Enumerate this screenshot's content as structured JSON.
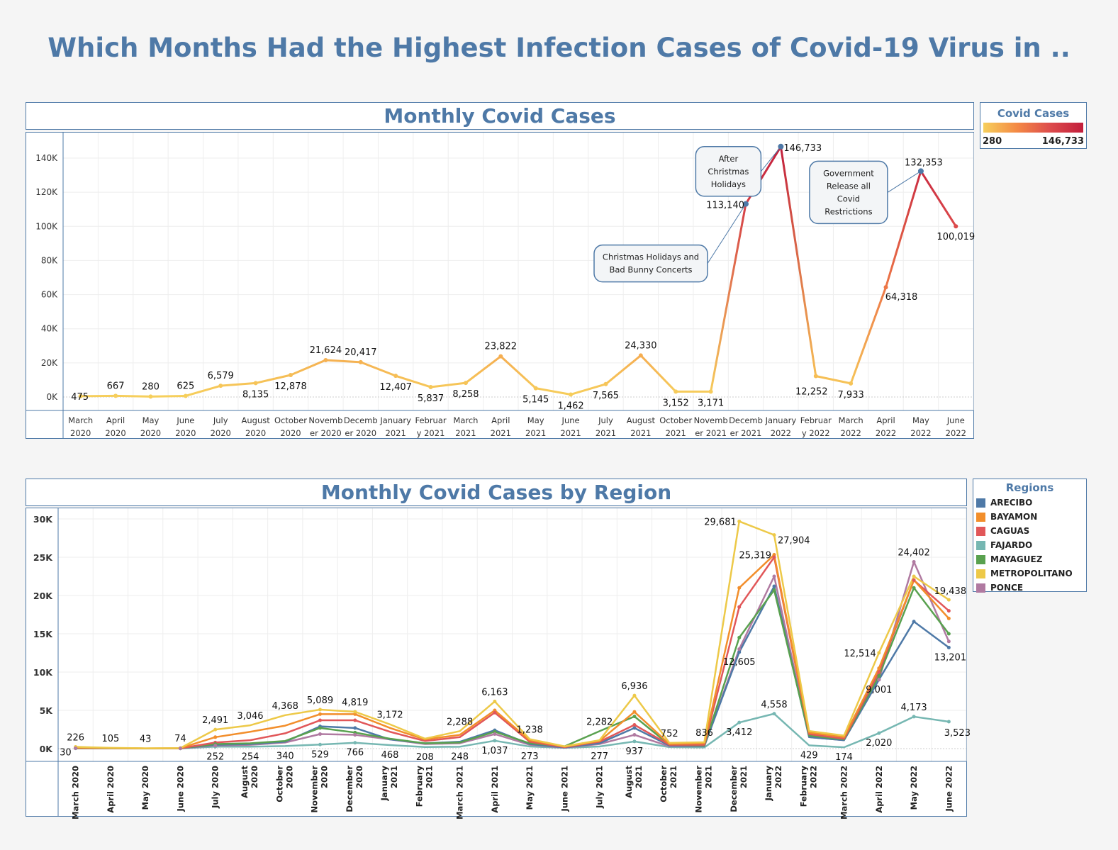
{
  "title": "Which Months Had the Highest Infection Cases of Covid-19 Virus in ..",
  "chart1": {
    "title": "Monthly Covid Cases",
    "legend": {
      "title": "Covid Cases",
      "min_label": "280",
      "max_label": "146,733",
      "colors": [
        "#f6cf5c",
        "#f48a45",
        "#dd4c4c",
        "#c21e3c"
      ]
    },
    "annotations": [
      {
        "text": [
          "After",
          "Christmas",
          "Holidays"
        ],
        "month": "January 2022"
      },
      {
        "text": [
          "Christmas Holidays and",
          "Bad Bunny Concerts"
        ],
        "month": "December 2021"
      },
      {
        "text": [
          "Government",
          "Release all",
          "Covid",
          "Restrictions"
        ],
        "month": "May 2022"
      }
    ]
  },
  "chart2": {
    "title": "Monthly Covid Cases by Region",
    "legend_title": "Regions"
  },
  "chart_data": [
    {
      "type": "line",
      "title": "Monthly Covid Cases",
      "categories": [
        "March 2020",
        "April 2020",
        "May 2020",
        "June 2020",
        "July 2020",
        "August 2020",
        "October 2020",
        "November 2020",
        "December 2020",
        "January 2021",
        "February 2021",
        "March 2021",
        "April 2021",
        "May 2021",
        "June 2021",
        "July 2021",
        "August 2021",
        "October 2021",
        "November 2021",
        "December 2021",
        "January 2022",
        "February 2022",
        "March 2022",
        "April 2022",
        "May 2022",
        "June 2022"
      ],
      "tick_labels": [
        [
          "March",
          "2020"
        ],
        [
          "April",
          "2020"
        ],
        [
          "May",
          "2020"
        ],
        [
          "June",
          "2020"
        ],
        [
          "July",
          "2020"
        ],
        [
          "August",
          "2020"
        ],
        [
          "October",
          "2020"
        ],
        [
          "Novemb",
          "er 2020"
        ],
        [
          "Decemb",
          "er 2020"
        ],
        [
          "January",
          "2021"
        ],
        [
          "Februar",
          "y 2021"
        ],
        [
          "March",
          "2021"
        ],
        [
          "April",
          "2021"
        ],
        [
          "May",
          "2021"
        ],
        [
          "June",
          "2021"
        ],
        [
          "July",
          "2021"
        ],
        [
          "August",
          "2021"
        ],
        [
          "October",
          "2021"
        ],
        [
          "Novemb",
          "er 2021"
        ],
        [
          "Decemb",
          "er 2021"
        ],
        [
          "January",
          "2022"
        ],
        [
          "Februar",
          "y 2022"
        ],
        [
          "March",
          "2022"
        ],
        [
          "April",
          "2022"
        ],
        [
          "May",
          "2022"
        ],
        [
          "June",
          "2022"
        ]
      ],
      "values": [
        475,
        667,
        280,
        625,
        6579,
        8135,
        12878,
        21624,
        20417,
        12407,
        5837,
        8258,
        23822,
        5145,
        1462,
        7565,
        24330,
        3152,
        3171,
        113140,
        146733,
        12252,
        7933,
        64318,
        132353,
        100019
      ],
      "data_labels": [
        "475",
        "667",
        "280",
        "625",
        "6,579",
        "8,135",
        "12,878",
        "21,624",
        "20,417",
        "12,407",
        "5,837",
        "8,258",
        "23,822",
        "5,145",
        "1,462",
        "7,565",
        "24,330",
        "3,152",
        "3,171",
        "113,140",
        "146,733",
        "12,252",
        "7,933",
        "64,318",
        "132,353",
        "100,019"
      ],
      "label_above": [
        false,
        true,
        true,
        true,
        true,
        false,
        false,
        true,
        true,
        false,
        false,
        false,
        true,
        false,
        false,
        false,
        true,
        false,
        false,
        false,
        false,
        false,
        false,
        false,
        true,
        false
      ],
      "ylim": [
        0,
        150000
      ],
      "yticks": [
        0,
        20000,
        40000,
        60000,
        80000,
        100000,
        120000,
        140000
      ],
      "ytick_labels": [
        "0K",
        "20K",
        "40K",
        "60K",
        "80K",
        "100K",
        "120K",
        "140K"
      ],
      "color_scale": [
        280,
        146733
      ]
    },
    {
      "type": "line",
      "title": "Monthly Covid Cases by Region",
      "categories": [
        "March 2020",
        "April 2020",
        "May 2020",
        "June 2020",
        "July 2020",
        "August 2020",
        "October 2020",
        "November 2020",
        "December 2020",
        "January 2021",
        "February 2021",
        "March 2021",
        "April 2021",
        "May 2021",
        "June 2021",
        "July 2021",
        "August 2021",
        "October 2021",
        "November 2021",
        "December 2021",
        "January 2022",
        "February 2022",
        "March 2022",
        "April 2022",
        "May 2022",
        "June 2022"
      ],
      "tick_labels": [
        [
          "March 2020"
        ],
        [
          "April 2020"
        ],
        [
          "May 2020"
        ],
        [
          "June 2020"
        ],
        [
          "July 2020"
        ],
        [
          "August",
          "2020"
        ],
        [
          "October",
          "2020"
        ],
        [
          "November",
          "2020"
        ],
        [
          "December",
          "2020"
        ],
        [
          "January",
          "2021"
        ],
        [
          "February",
          "2021"
        ],
        [
          "March 2021"
        ],
        [
          "April 2021"
        ],
        [
          "May 2021"
        ],
        [
          "June 2021"
        ],
        [
          "July 2021"
        ],
        [
          "August",
          "2021"
        ],
        [
          "October",
          "2021"
        ],
        [
          "November",
          "2021"
        ],
        [
          "December",
          "2021"
        ],
        [
          "January",
          "2022"
        ],
        [
          "February",
          "2022"
        ],
        [
          "March 2022"
        ],
        [
          "April 2022"
        ],
        [
          "May 2022"
        ],
        [
          "June 2022"
        ]
      ],
      "ylim": [
        0,
        31000
      ],
      "yticks": [
        0,
        5000,
        10000,
        15000,
        20000,
        25000,
        30000
      ],
      "ytick_labels": [
        "0K",
        "5K",
        "10K",
        "15K",
        "20K",
        "25K",
        "30K"
      ],
      "series": [
        {
          "name": "ARECIBO",
          "color": "#4e79a7",
          "values": [
            60,
            50,
            20,
            40,
            500,
            600,
            900,
            2900,
            2700,
            1200,
            700,
            900,
            2400,
            600,
            150,
            700,
            2700,
            400,
            350,
            12605,
            21200,
            1500,
            1100,
            9001,
            16600,
            13201
          ]
        },
        {
          "name": "BAYAMON",
          "color": "#f28e2b",
          "values": [
            120,
            70,
            25,
            60,
            1500,
            2200,
            3000,
            4500,
            4500,
            2700,
            1200,
            1800,
            5000,
            1100,
            250,
            1000,
            4800,
            600,
            700,
            21000,
            25319,
            2100,
            1500,
            10500,
            22000,
            17000
          ]
        },
        {
          "name": "CAGUAS",
          "color": "#e15759",
          "values": [
            90,
            60,
            20,
            50,
            800,
            1100,
            2000,
            3700,
            3700,
            2200,
            1000,
            1500,
            4700,
            900,
            200,
            900,
            3100,
            500,
            500,
            18500,
            25000,
            1900,
            1300,
            10000,
            22000,
            18000
          ]
        },
        {
          "name": "FAJARDO",
          "color": "#76b7b2",
          "values": [
            30,
            20,
            10,
            20,
            252,
            254,
            340,
            529,
            766,
            468,
            208,
            248,
            1037,
            273,
            100,
            277,
            937,
            200,
            150,
            3412,
            4558,
            429,
            174,
            2020,
            4173,
            3523
          ]
        },
        {
          "name": "MAYAGUEZ",
          "color": "#59a14f",
          "values": [
            60,
            50,
            20,
            40,
            600,
            700,
            1000,
            2700,
            2100,
            1300,
            700,
            800,
            2200,
            700,
            300,
            2282,
            4200,
            500,
            400,
            14500,
            20700,
            1700,
            1200,
            9500,
            21000,
            15000
          ]
        },
        {
          "name": "METROPOLITANO",
          "color": "#edc948",
          "values": [
            226,
            105,
            43,
            74,
            2491,
            3046,
            4368,
            5089,
            4819,
            3172,
            1300,
            2288,
            6163,
            1238,
            300,
            1100,
            6936,
            752,
            836,
            29681,
            27904,
            2300,
            1700,
            12514,
            22500,
            19438
          ]
        },
        {
          "name": "PONCE",
          "color": "#b07aa1",
          "values": [
            50,
            40,
            20,
            30,
            400,
            500,
            800,
            1900,
            1800,
            1200,
            600,
            700,
            1900,
            500,
            120,
            600,
            1800,
            300,
            300,
            13000,
            22500,
            1500,
            1100,
            9000,
            24402,
            14000
          ]
        }
      ],
      "point_labels": [
        {
          "series": "METROPOLITANO",
          "i": 0,
          "text": "226",
          "pos": "above"
        },
        {
          "series": "METROPOLITANO",
          "i": 1,
          "text": "105",
          "pos": "above"
        },
        {
          "series": "METROPOLITANO",
          "i": 2,
          "text": "43",
          "pos": "above"
        },
        {
          "series": "METROPOLITANO",
          "i": 3,
          "text": "74",
          "pos": "above"
        },
        {
          "series": "METROPOLITANO",
          "i": 4,
          "text": "2,491",
          "pos": "above"
        },
        {
          "series": "METROPOLITANO",
          "i": 5,
          "text": "3,046",
          "pos": "above"
        },
        {
          "series": "METROPOLITANO",
          "i": 6,
          "text": "4,368",
          "pos": "above"
        },
        {
          "series": "METROPOLITANO",
          "i": 7,
          "text": "5,089",
          "pos": "above"
        },
        {
          "series": "METROPOLITANO",
          "i": 8,
          "text": "4,819",
          "pos": "above"
        },
        {
          "series": "METROPOLITANO",
          "i": 9,
          "text": "3,172",
          "pos": "above"
        },
        {
          "series": "METROPOLITANO",
          "i": 11,
          "text": "2,288",
          "pos": "above"
        },
        {
          "series": "METROPOLITANO",
          "i": 12,
          "text": "6,163",
          "pos": "above"
        },
        {
          "series": "METROPOLITANO",
          "i": 13,
          "text": "1,238",
          "pos": "above"
        },
        {
          "series": "MAYAGUEZ",
          "i": 15,
          "text": "2,282",
          "pos": "above"
        },
        {
          "series": "METROPOLITANO",
          "i": 16,
          "text": "6,936",
          "pos": "above"
        },
        {
          "series": "METROPOLITANO",
          "i": 17,
          "text": "752",
          "pos": "above"
        },
        {
          "series": "METROPOLITANO",
          "i": 18,
          "text": "836",
          "pos": "above"
        },
        {
          "series": "METROPOLITANO",
          "i": 19,
          "text": "29,681",
          "pos": "left"
        },
        {
          "series": "METROPOLITANO",
          "i": 20,
          "text": "27,904",
          "pos": "right"
        },
        {
          "series": "BAYAMON",
          "i": 20,
          "text": "25,319",
          "pos": "left"
        },
        {
          "series": "METROPOLITANO",
          "i": 23,
          "text": "12,514",
          "pos": "left"
        },
        {
          "series": "PONCE",
          "i": 24,
          "text": "24,402",
          "pos": "above"
        },
        {
          "series": "METROPOLITANO",
          "i": 25,
          "text": "19,438",
          "pos": "above"
        },
        {
          "series": "ARECIBO",
          "i": 19,
          "text": "12,605",
          "pos": "below"
        },
        {
          "series": "ARECIBO",
          "i": 23,
          "text": "9,001",
          "pos": "below"
        },
        {
          "series": "ARECIBO",
          "i": 25,
          "text": "13,201",
          "pos": "below"
        },
        {
          "series": "FAJARDO",
          "i": 0,
          "text": "30",
          "pos": "left"
        },
        {
          "series": "FAJARDO",
          "i": 4,
          "text": "252",
          "pos": "below"
        },
        {
          "series": "FAJARDO",
          "i": 5,
          "text": "254",
          "pos": "below"
        },
        {
          "series": "FAJARDO",
          "i": 6,
          "text": "340",
          "pos": "below"
        },
        {
          "series": "FAJARDO",
          "i": 7,
          "text": "529",
          "pos": "below"
        },
        {
          "series": "FAJARDO",
          "i": 8,
          "text": "766",
          "pos": "below"
        },
        {
          "series": "FAJARDO",
          "i": 9,
          "text": "468",
          "pos": "below"
        },
        {
          "series": "FAJARDO",
          "i": 10,
          "text": "208",
          "pos": "below"
        },
        {
          "series": "FAJARDO",
          "i": 11,
          "text": "248",
          "pos": "below"
        },
        {
          "series": "FAJARDO",
          "i": 12,
          "text": "1,037",
          "pos": "below"
        },
        {
          "series": "FAJARDO",
          "i": 13,
          "text": "273",
          "pos": "below"
        },
        {
          "series": "FAJARDO",
          "i": 15,
          "text": "277",
          "pos": "below"
        },
        {
          "series": "FAJARDO",
          "i": 16,
          "text": "937",
          "pos": "below"
        },
        {
          "series": "FAJARDO",
          "i": 19,
          "text": "3,412",
          "pos": "below"
        },
        {
          "series": "FAJARDO",
          "i": 20,
          "text": "4,558",
          "pos": "above"
        },
        {
          "series": "FAJARDO",
          "i": 21,
          "text": "429",
          "pos": "below"
        },
        {
          "series": "FAJARDO",
          "i": 22,
          "text": "174",
          "pos": "below"
        },
        {
          "series": "FAJARDO",
          "i": 23,
          "text": "2,020",
          "pos": "below"
        },
        {
          "series": "FAJARDO",
          "i": 24,
          "text": "4,173",
          "pos": "above"
        },
        {
          "series": "FAJARDO",
          "i": 25,
          "text": "3,523",
          "pos": "below"
        }
      ]
    }
  ]
}
